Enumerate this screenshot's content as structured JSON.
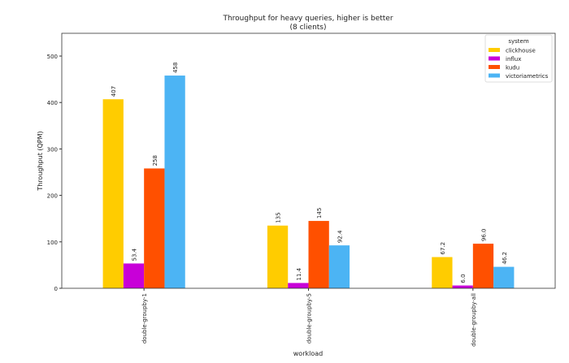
{
  "chart_data": {
    "type": "bar",
    "title": "Throughput for heavy queries, higher is better",
    "subtitle": "(8 clients)",
    "xlabel": "workload",
    "ylabel": "Throughput (QPM)",
    "categories": [
      "double-groupby-1",
      "double-groupby-5",
      "double-groupby-all"
    ],
    "series": [
      {
        "name": "clickhouse",
        "color": "#ffcc00",
        "values": [
          407,
          135,
          67.2
        ],
        "labels": [
          "407",
          "135",
          "67.2"
        ]
      },
      {
        "name": "influx",
        "color": "#c800d8",
        "values": [
          53.4,
          11.4,
          6.0
        ],
        "labels": [
          "53.4",
          "11.4",
          "6.0"
        ]
      },
      {
        "name": "kudu",
        "color": "#ff5000",
        "values": [
          258,
          145,
          96.0
        ],
        "labels": [
          "258",
          "145",
          "96.0"
        ]
      },
      {
        "name": "victoriametrics",
        "color": "#4cb4f4",
        "values": [
          458,
          92.4,
          46.2
        ],
        "labels": [
          "458",
          "92.4",
          "46.2"
        ]
      }
    ],
    "ylim": [
      0,
      549
    ],
    "yticks": [
      "0",
      "100",
      "200",
      "300",
      "400",
      "500"
    ],
    "grid": false,
    "legend": {
      "title": "system",
      "placement": "top-right"
    }
  }
}
